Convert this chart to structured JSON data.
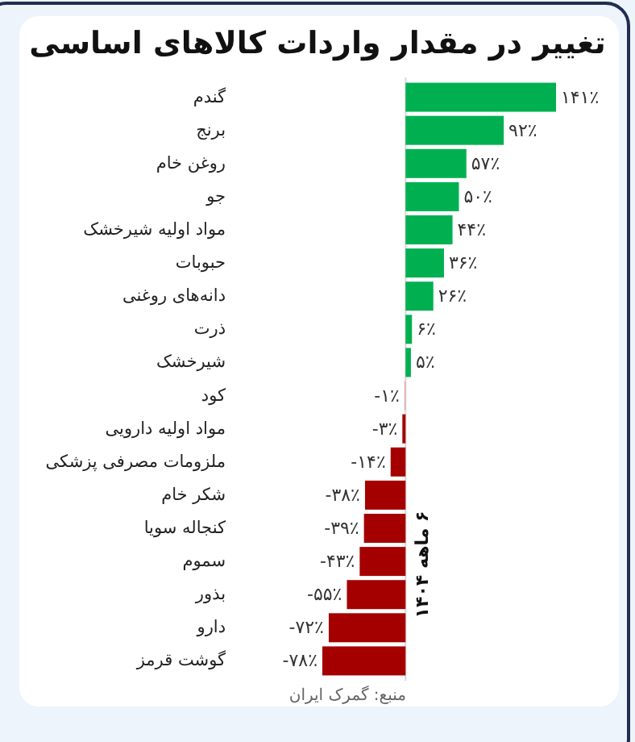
{
  "chart_data": {
    "type": "bar",
    "orientation": "horizontal",
    "title": "تغییر در مقدار واردات کالاهای اساسی",
    "categories": [
      "گندم",
      "برنج",
      "روغن خام",
      "جو",
      "مواد اولیه شیرخشک",
      "حبوبات",
      "دانه‌های روغنی",
      "ذرت",
      "شیرخشک",
      "کود",
      "مواد اولیه دارویی",
      "ملزومات مصرفی پزشکی",
      "شکر خام",
      "کنجاله سویا",
      "سموم",
      "بذور",
      "دارو",
      "گوشت قرمز"
    ],
    "values": [
      141,
      92,
      57,
      50,
      44,
      36,
      26,
      6,
      5,
      -1,
      -3,
      -14,
      -38,
      -39,
      -43,
      -55,
      -72,
      -78
    ],
    "value_labels": [
      "۱۴۱٪",
      "۹۲٪",
      "۵۷٪",
      "۵۰٪",
      "۴۴٪",
      "۳۶٪",
      "۲۶٪",
      "۶٪",
      "۵٪",
      "-۱٪",
      "-۳٪",
      "-۱۴٪",
      "-۳۸٪",
      "-۳۹٪",
      "-۴۳٪",
      "-۵۵٪",
      "-۷۲٪",
      "-۷۸٪"
    ],
    "colors": [
      "#00b050",
      "#00b050",
      "#00b050",
      "#00b050",
      "#00b050",
      "#00b050",
      "#00b050",
      "#00b050",
      "#00b050",
      "#e8a0a0",
      "#a50000",
      "#a50000",
      "#a50000",
      "#a50000",
      "#a50000",
      "#a50000",
      "#a50000",
      "#a50000"
    ],
    "annotations": [
      "۶ ماهه ۱۴۰۴",
      "منبع: گمرک ایران"
    ]
  }
}
